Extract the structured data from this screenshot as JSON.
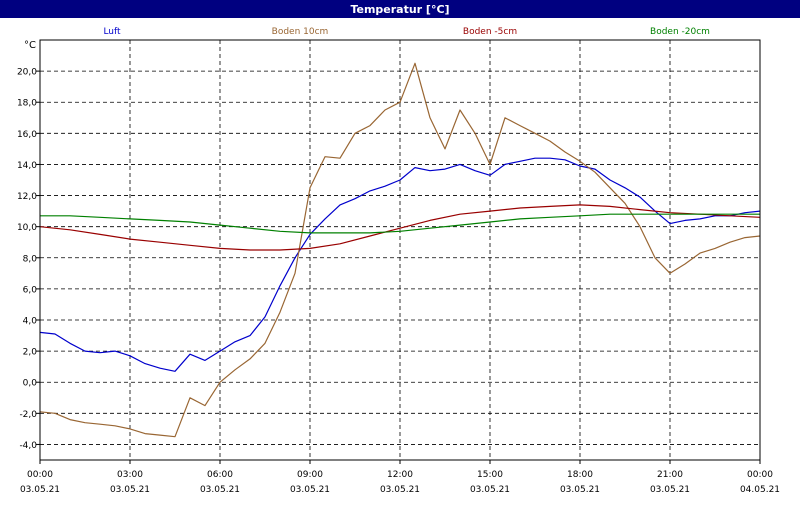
{
  "window": {
    "title": "Temperatur [°C]",
    "title_bar_color": "#000080",
    "title_text_color": "#ffffff"
  },
  "chart_data": {
    "type": "line",
    "title": "Temperatur [°C]",
    "ylabel": "°C",
    "xlabel": "",
    "ylim": [
      -5,
      22
    ],
    "xlim": [
      0,
      24
    ],
    "grid": true,
    "legend_position": "top",
    "x_unit": "hours since 03.05.21 00:00",
    "y_ticks": [
      -4.0,
      -2.0,
      0.0,
      2.0,
      4.0,
      6.0,
      8.0,
      10.0,
      12.0,
      14.0,
      16.0,
      18.0,
      20.0
    ],
    "y_tick_labels": [
      "-4,0",
      "-2,0",
      "0,0",
      "2,0",
      "4,0",
      "6,0",
      "8,0",
      "10,0",
      "12,0",
      "14,0",
      "16,0",
      "18,0",
      "20,0"
    ],
    "x_ticks": [
      0,
      3,
      6,
      9,
      12,
      15,
      18,
      21,
      24
    ],
    "x_tick_times": [
      "00:00",
      "03:00",
      "06:00",
      "09:00",
      "12:00",
      "15:00",
      "18:00",
      "21:00",
      "00:00"
    ],
    "x_tick_dates": [
      "03.05.21",
      "03.05.21",
      "03.05.21",
      "03.05.21",
      "03.05.21",
      "03.05.21",
      "03.05.21",
      "03.05.21",
      "04.05.21"
    ],
    "series": [
      {
        "name": "Luft",
        "color": "#0000cc",
        "x": [
          0,
          0.5,
          1,
          1.5,
          2,
          2.5,
          3,
          3.5,
          4,
          4.5,
          5,
          5.5,
          6,
          6.5,
          7,
          7.5,
          8,
          8.5,
          9,
          9.5,
          10,
          10.5,
          11,
          11.5,
          12,
          12.5,
          13,
          13.5,
          14,
          14.5,
          15,
          15.5,
          16,
          16.5,
          17,
          17.5,
          18,
          18.5,
          19,
          19.5,
          20,
          20.5,
          21,
          21.5,
          22,
          22.5,
          23,
          23.5,
          24
        ],
        "values": [
          3.2,
          3.1,
          2.5,
          2.0,
          1.9,
          2.0,
          1.7,
          1.2,
          0.9,
          0.7,
          1.8,
          1.4,
          2.0,
          2.6,
          3.0,
          4.2,
          6.2,
          8.0,
          9.5,
          10.5,
          11.4,
          11.8,
          12.3,
          12.6,
          13.0,
          13.8,
          13.6,
          13.7,
          14.0,
          13.6,
          13.3,
          14.0,
          14.2,
          14.4,
          14.4,
          14.3,
          13.9,
          13.7,
          13.0,
          12.5,
          11.9,
          11.0,
          10.2,
          10.4,
          10.5,
          10.7,
          10.7,
          10.9,
          11.0
        ]
      },
      {
        "name": "Boden 10cm",
        "color": "#996633",
        "x": [
          0,
          0.5,
          1,
          1.5,
          2,
          2.5,
          3,
          3.5,
          4,
          4.5,
          5,
          5.5,
          6,
          6.5,
          7,
          7.5,
          8,
          8.5,
          9,
          9.5,
          10,
          10.5,
          11,
          11.5,
          12,
          12.5,
          13,
          13.5,
          14,
          14.5,
          15,
          15.5,
          16,
          16.5,
          17,
          17.5,
          18,
          18.5,
          19,
          19.5,
          20,
          20.5,
          21,
          21.5,
          22,
          22.5,
          23,
          23.5,
          24
        ],
        "values": [
          -1.9,
          -2.0,
          -2.4,
          -2.6,
          -2.7,
          -2.8,
          -3.0,
          -3.3,
          -3.4,
          -3.5,
          -1.0,
          -1.5,
          0.0,
          0.8,
          1.5,
          2.5,
          4.5,
          7.0,
          12.5,
          14.5,
          14.4,
          16.0,
          16.5,
          17.5,
          18.0,
          20.5,
          17.0,
          15.0,
          17.5,
          16.0,
          14.0,
          17.0,
          16.5,
          16.0,
          15.5,
          14.8,
          14.2,
          13.5,
          12.5,
          11.5,
          10.0,
          8.0,
          7.0,
          7.6,
          8.3,
          8.6,
          9.0,
          9.3,
          9.4
        ]
      },
      {
        "name": "Boden -5cm",
        "color": "#990000",
        "x": [
          0,
          1,
          2,
          3,
          4,
          5,
          6,
          7,
          8,
          9,
          10,
          11,
          12,
          13,
          14,
          15,
          16,
          17,
          18,
          19,
          20,
          21,
          22,
          23,
          24
        ],
        "values": [
          10.0,
          9.8,
          9.5,
          9.2,
          9.0,
          8.8,
          8.6,
          8.5,
          8.5,
          8.6,
          8.9,
          9.4,
          9.9,
          10.4,
          10.8,
          11.0,
          11.2,
          11.3,
          11.4,
          11.3,
          11.1,
          10.9,
          10.8,
          10.7,
          10.6
        ]
      },
      {
        "name": "Boden -20cm",
        "color": "#008000",
        "x": [
          0,
          1,
          2,
          3,
          4,
          5,
          6,
          7,
          8,
          9,
          10,
          11,
          12,
          13,
          14,
          15,
          16,
          17,
          18,
          19,
          20,
          21,
          22,
          23,
          24
        ],
        "values": [
          10.7,
          10.7,
          10.6,
          10.5,
          10.4,
          10.3,
          10.1,
          9.9,
          9.7,
          9.6,
          9.6,
          9.6,
          9.7,
          9.9,
          10.1,
          10.3,
          10.5,
          10.6,
          10.7,
          10.8,
          10.8,
          10.8,
          10.8,
          10.8,
          10.8
        ]
      }
    ]
  }
}
